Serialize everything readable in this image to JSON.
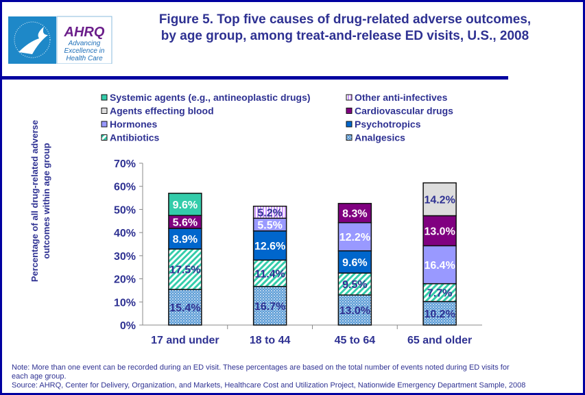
{
  "header": {
    "title_line1": "Figure 5. Top five causes of drug-related adverse outcomes,",
    "title_line2": "by age group, among treat-and-release ED visits, U.S., 2008",
    "logo_text": [
      "AHRQ",
      "Advancing",
      "Excellence in",
      "Health Care"
    ]
  },
  "chart_data": {
    "type": "bar",
    "stacked": true,
    "title": "Figure 5. Top five causes of drug-related adverse outcomes, by age group, among treat-and-release ED visits, U.S., 2008",
    "ylabel": "Percentage of all drug-related adverse outcomes within age group",
    "ylabel_lines": [
      "Percentage of all drug-related adverse",
      "outcomes within age group"
    ],
    "xlabel": "",
    "ylim": [
      0,
      70
    ],
    "yticks": [
      "0%",
      "10%",
      "20%",
      "30%",
      "40%",
      "50%",
      "60%",
      "70%"
    ],
    "legend_placement": "top",
    "grid": false,
    "categories": [
      "17 and under",
      "18 to 44",
      "45 to 64",
      "65 and older"
    ],
    "series": [
      {
        "name": "Analgesics",
        "color": "#5b9bd5",
        "pattern": "dots",
        "values": [
          15.4,
          16.7,
          13.0,
          10.2
        ]
      },
      {
        "name": "Antibiotics",
        "color": "#33ccaa",
        "pattern": "diagonal",
        "values": [
          17.5,
          11.4,
          9.5,
          7.7
        ]
      },
      {
        "name": "Psychotropics",
        "color": "#0066cc",
        "pattern": "solid",
        "values": [
          8.9,
          12.6,
          9.6,
          null
        ]
      },
      {
        "name": "Hormones",
        "color": "#9999ff",
        "pattern": "solid",
        "values": [
          null,
          5.5,
          12.2,
          16.4
        ]
      },
      {
        "name": "Cardiovascular drugs",
        "color": "#800080",
        "pattern": "solid",
        "values": [
          5.6,
          null,
          8.3,
          13.0
        ]
      },
      {
        "name": "Agents effecting blood",
        "color": "#dddddd",
        "pattern": "solid",
        "values": [
          null,
          null,
          null,
          14.2
        ]
      },
      {
        "name": "Other anti-infectives",
        "color": "#cc99ff",
        "pattern": "vertical",
        "values": [
          null,
          5.2,
          null,
          null
        ]
      },
      {
        "name": "Systemic agents (e.g., antineoplastic drugs)",
        "color": "#33ccaa",
        "pattern": "solid",
        "values": [
          9.6,
          null,
          null,
          null
        ]
      }
    ],
    "legend_order": [
      "Systemic agents (e.g., antineoplastic drugs)",
      "Other anti-infectives",
      "Agents effecting blood",
      "Cardiovascular drugs",
      "Hormones",
      "Psychotropics",
      "Antibiotics",
      "Analgesics"
    ]
  },
  "notes": {
    "line1": "Note: More than one event can be recorded during an ED visit.  These percentages are based on the total number of events noted during ED visits for",
    "line2": "each age group.",
    "line3": "Source: AHRQ, Center for Delivery, Organization, and Markets, Healthcare Cost and Utilization Project, Nationwide Emergency Department Sample, 2008"
  }
}
